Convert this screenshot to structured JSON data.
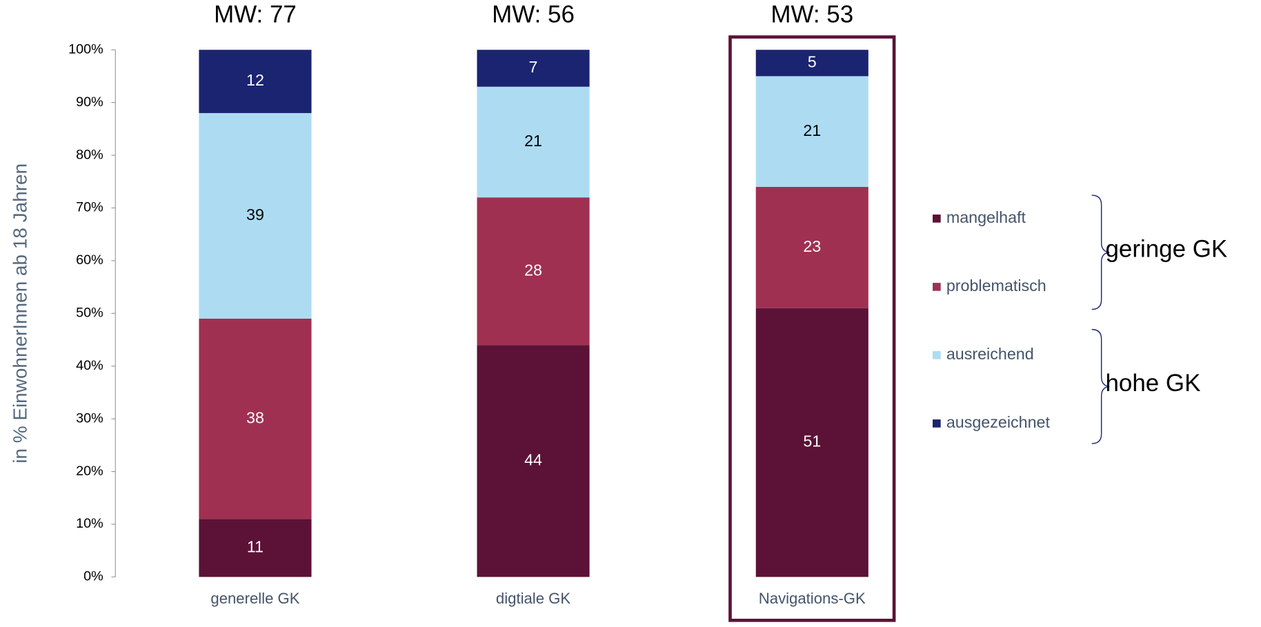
{
  "chart_data": {
    "type": "stacked_bar",
    "y_axis_label": "in % EinwohnerInnen ab 18 Jahren",
    "categories": [
      "generelle GK",
      "digtiale GK",
      "Navigations-GK"
    ],
    "annotations": [
      "MW: 77",
      "MW: 56",
      "MW: 53"
    ],
    "series": [
      {
        "name": "mangelhaft",
        "color": "#5c1236",
        "values": [
          11,
          44,
          51
        ]
      },
      {
        "name": "problematisch",
        "color": "#a03052",
        "values": [
          38,
          28,
          23
        ]
      },
      {
        "name": "ausreichend",
        "color": "#addcf2",
        "values": [
          39,
          21,
          21
        ]
      },
      {
        "name": "ausgezeichnet",
        "color": "#1b2470",
        "values": [
          12,
          7,
          5
        ]
      }
    ],
    "ylim": [
      0,
      100
    ],
    "yticks": [
      {
        "value": 0,
        "label": "0%"
      },
      {
        "value": 10,
        "label": "10%"
      },
      {
        "value": 20,
        "label": "20%"
      },
      {
        "value": 30,
        "label": "30%"
      },
      {
        "value": 40,
        "label": "40%"
      },
      {
        "value": 50,
        "label": "50%"
      },
      {
        "value": 60,
        "label": "60%"
      },
      {
        "value": 70,
        "label": "70%"
      },
      {
        "value": 80,
        "label": "80%"
      },
      {
        "value": 90,
        "label": "90%"
      },
      {
        "value": 100,
        "label": "100%"
      }
    ],
    "legend_groups": [
      "geringe GK",
      "hohe GK"
    ]
  }
}
